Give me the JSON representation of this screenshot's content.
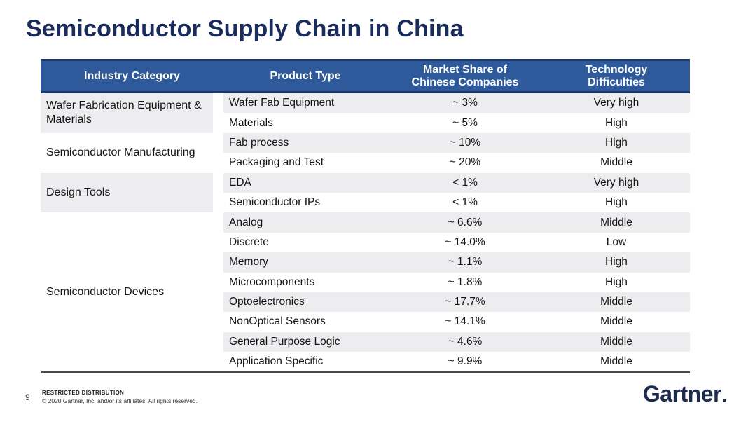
{
  "slide": {
    "title": "Semiconductor Supply Chain in China"
  },
  "table": {
    "columns": [
      "Industry Category",
      "Product Type",
      "Market Share of\nChinese Companies",
      "Technology\nDifficulties"
    ],
    "categories": [
      {
        "label": "Wafer Fabrication Equipment & Materials",
        "rows": 2,
        "shaded": true
      },
      {
        "label": "Semiconductor Manufacturing",
        "rows": 2,
        "shaded": false
      },
      {
        "label": "Design Tools",
        "rows": 2,
        "shaded": true
      },
      {
        "label": "Semiconductor Devices",
        "rows": 8,
        "shaded": false
      }
    ],
    "rows": [
      {
        "product": "Wafer Fab Equipment",
        "share": "~ 3%",
        "difficulty": "Very high"
      },
      {
        "product": "Materials",
        "share": "~ 5%",
        "difficulty": "High"
      },
      {
        "product": "Fab process",
        "share": "~ 10%",
        "difficulty": "High"
      },
      {
        "product": "Packaging and Test",
        "share": "~ 20%",
        "difficulty": "Middle"
      },
      {
        "product": "EDA",
        "share": "< 1%",
        "difficulty": "Very high"
      },
      {
        "product": "Semiconductor IPs",
        "share": "< 1%",
        "difficulty": "High"
      },
      {
        "product": "Analog",
        "share": "~ 6.6%",
        "difficulty": "Middle"
      },
      {
        "product": "Discrete",
        "share": "~ 14.0%",
        "difficulty": "Low"
      },
      {
        "product": "Memory",
        "share": "~ 1.1%",
        "difficulty": "High"
      },
      {
        "product": "Microcomponents",
        "share": "~ 1.8%",
        "difficulty": "High"
      },
      {
        "product": "Optoelectronics",
        "share": "~ 17.7%",
        "difficulty": "Middle"
      },
      {
        "product": "NonOptical Sensors",
        "share": "~ 14.1%",
        "difficulty": "Middle"
      },
      {
        "product": "General Purpose Logic",
        "share": "~ 4.6%",
        "difficulty": "Middle"
      },
      {
        "product": "Application Specific",
        "share": "~ 9.9%",
        "difficulty": "Middle"
      }
    ]
  },
  "footer": {
    "page_number": "9",
    "restricted": "RESTRICTED DISTRIBUTION",
    "copyright": "© 2020 Gartner, Inc. and/or its affiliates. All rights reserved.",
    "logo": "Gartner"
  },
  "colors": {
    "title_navy": "#1a2c5b",
    "header_bg": "#2e5a9b",
    "header_border": "#1f3864",
    "row_shade": "#edecef",
    "table_bottom_border": "#4a4a4a",
    "logo_navy": "#1b2a4d"
  },
  "chart_data": {
    "type": "table",
    "title": "Semiconductor Supply Chain in China",
    "columns": [
      "Industry Category",
      "Product Type",
      "Market Share of Chinese Companies",
      "Technology Difficulties"
    ],
    "rows": [
      [
        "Wafer Fabrication Equipment & Materials",
        "Wafer Fab Equipment",
        "~ 3%",
        "Very high"
      ],
      [
        "Wafer Fabrication Equipment & Materials",
        "Materials",
        "~ 5%",
        "High"
      ],
      [
        "Semiconductor Manufacturing",
        "Fab process",
        "~ 10%",
        "High"
      ],
      [
        "Semiconductor Manufacturing",
        "Packaging and Test",
        "~ 20%",
        "Middle"
      ],
      [
        "Design Tools",
        "EDA",
        "< 1%",
        "Very high"
      ],
      [
        "Design Tools",
        "Semiconductor IPs",
        "< 1%",
        "High"
      ],
      [
        "Semiconductor Devices",
        "Analog",
        "~ 6.6%",
        "Middle"
      ],
      [
        "Semiconductor Devices",
        "Discrete",
        "~ 14.0%",
        "Low"
      ],
      [
        "Semiconductor Devices",
        "Memory",
        "~ 1.1%",
        "High"
      ],
      [
        "Semiconductor Devices",
        "Microcomponents",
        "~ 1.8%",
        "High"
      ],
      [
        "Semiconductor Devices",
        "Optoelectronics",
        "~ 17.7%",
        "Middle"
      ],
      [
        "Semiconductor Devices",
        "NonOptical Sensors",
        "~ 14.1%",
        "Middle"
      ],
      [
        "Semiconductor Devices",
        "General Purpose Logic",
        "~ 4.6%",
        "Middle"
      ],
      [
        "Semiconductor Devices",
        "Application Specific",
        "~ 9.9%",
        "Middle"
      ]
    ]
  }
}
